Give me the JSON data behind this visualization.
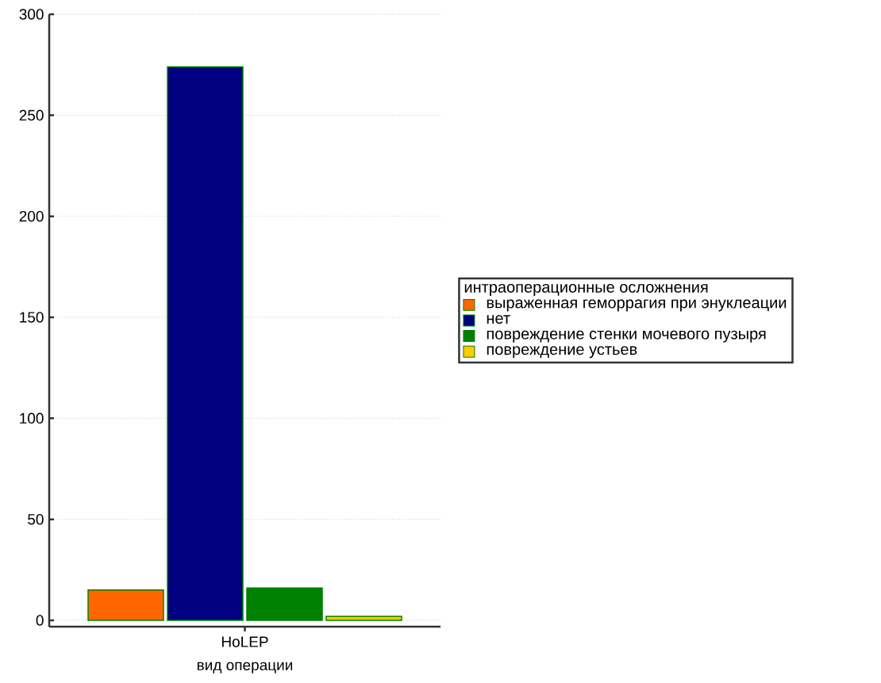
{
  "chart_data": {
    "type": "bar",
    "xlabel": "вид операции",
    "legend_title": "интраоперационные осложнения",
    "categories": [
      "HoLEP"
    ],
    "series": [
      {
        "name": "выраженная геморрагия при энуклеации",
        "color": "#ff6600",
        "values": [
          15
        ]
      },
      {
        "name": "нет",
        "color": "#000080",
        "values": [
          274
        ]
      },
      {
        "name": "повреждение стенки мочевого пузыря",
        "color": "#008000",
        "values": [
          16
        ]
      },
      {
        "name": "повреждение устьев",
        "color": "#ffcc00",
        "values": [
          2
        ]
      }
    ],
    "ylim": [
      0,
      300
    ],
    "yticks": [
      0,
      50,
      100,
      150,
      200,
      250,
      300
    ],
    "grid": "y",
    "legend": "right"
  }
}
